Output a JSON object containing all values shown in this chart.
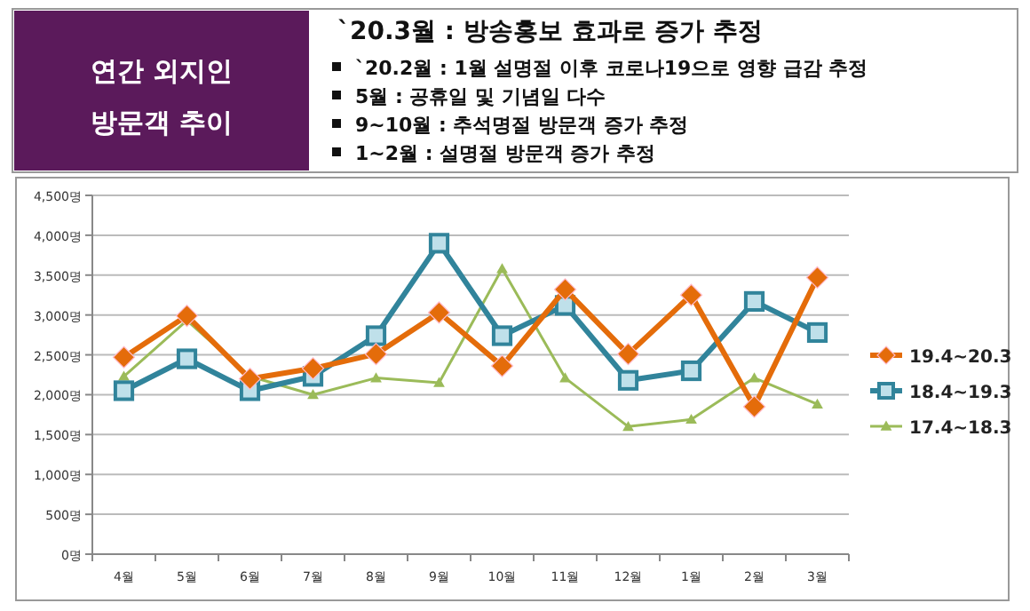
{
  "chart_data": {
    "type": "line",
    "title": "연간 외지인 방문객 추이",
    "subtitle": "`20.3월 : 방송홍보 효과로 증가 추정",
    "annotations": [
      "`20.2월 : 1월 설명절 이후 코로나19으로 영향 급감 추정",
      "5월 : 공휴일 및 기념일 다수",
      "9~10월 : 추석명절 방문객 증가 추정",
      "1~2월 : 설명절 방문객 증가 추정"
    ],
    "categories": [
      "4월",
      "5월",
      "6월",
      "7월",
      "8월",
      "9월",
      "10월",
      "11월",
      "12월",
      "1월",
      "2월",
      "3월"
    ],
    "series": [
      {
        "name": "19.4~20.3",
        "color": "#e46c0a",
        "marker": "diamond",
        "values": [
          2470,
          2990,
          2200,
          2330,
          2510,
          3030,
          2360,
          3320,
          2510,
          3250,
          1850,
          3470
        ]
      },
      {
        "name": "18.4~19.3",
        "color": "#31849b",
        "marker": "square",
        "values": [
          2050,
          2450,
          2050,
          2230,
          2740,
          3900,
          2740,
          3120,
          2180,
          2300,
          3170,
          2780
        ]
      },
      {
        "name": "17.4~18.3",
        "color": "#9bbb59",
        "marker": "triangle",
        "values": [
          2230,
          2930,
          2230,
          2000,
          2210,
          2150,
          3580,
          2210,
          1600,
          1690,
          2210,
          1880
        ]
      }
    ],
    "ylim": [
      0,
      4500
    ],
    "yticks": [
      {
        "value": 0,
        "label": "0명"
      },
      {
        "value": 500,
        "label": "500명"
      },
      {
        "value": 1000,
        "label": "1,000명"
      },
      {
        "value": 1500,
        "label": "1,500명"
      },
      {
        "value": 2000,
        "label": "2,000명"
      },
      {
        "value": 2500,
        "label": "2,500명"
      },
      {
        "value": 3000,
        "label": "3,000명"
      },
      {
        "value": 3500,
        "label": "3,500명"
      },
      {
        "value": 4000,
        "label": "4,000명"
      },
      {
        "value": 4500,
        "label": "4,500명"
      }
    ],
    "grid": "y",
    "legend": "right",
    "line_style": "solid"
  }
}
